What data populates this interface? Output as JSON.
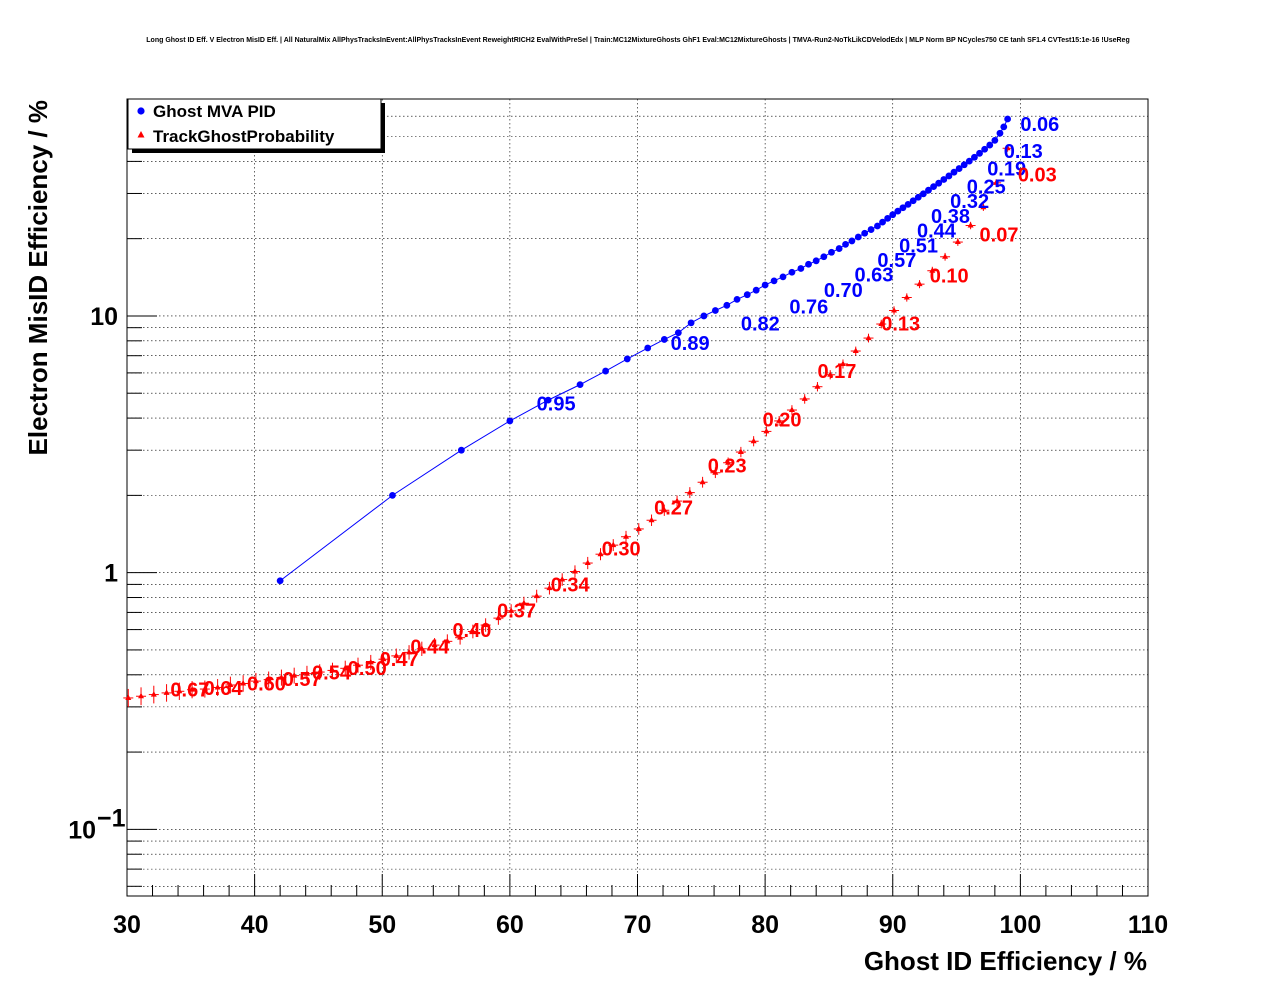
{
  "chart_data": {
    "type": "scatter",
    "title": "Long Ghost ID Eff. V Electron MisID Eff. | All NaturalMix AllPhysTracksInEvent:AllPhysTracksInEvent ReweightRICH2 EvalWithPreSel | Train:MC12MixtureGhosts GhF1 Eval:MC12MixtureGhosts | TMVA-Run2-NoTkLikCDVelodEdx | MLP Norm BP NCycles750 CE tanh SF1.4 CVTest15:1e-16 !UseReg",
    "xlabel": "Ghost ID Efficiency / %",
    "ylabel": "Electron MisID Efficiency / %",
    "xlim": [
      30,
      110
    ],
    "ylim": [
      0.055,
      70
    ],
    "ylog": true,
    "grid": true,
    "legend_position": "top-left",
    "x_ticks": [
      "30",
      "40",
      "50",
      "60",
      "70",
      "80",
      "90",
      "100",
      "110"
    ],
    "y_ticks": [
      {
        "value": 0.1,
        "base": "10",
        "exp": "−1"
      },
      {
        "value": 1,
        "base": "1",
        "exp": ""
      },
      {
        "value": 10,
        "base": "10",
        "exp": ""
      }
    ],
    "series": [
      {
        "name": "Ghost MVA PID",
        "color": "#0000ff",
        "marker": "circle",
        "line": true,
        "x": [
          42,
          50.8,
          56.2,
          60,
          63,
          65.5,
          67.5,
          69.2,
          70.8,
          72.1,
          73.2,
          74.2,
          75.2,
          76.1,
          77,
          77.8,
          78.6,
          79.3,
          80,
          80.7,
          81.4,
          82.1,
          82.8,
          83.4,
          84,
          84.6,
          85.2,
          85.8,
          86.3,
          86.8,
          87.3,
          87.8,
          88.3,
          88.8,
          89.2,
          89.6,
          90,
          90.4,
          90.8,
          91.2,
          91.6,
          92,
          92.4,
          92.8,
          93.2,
          93.6,
          94,
          94.4,
          94.8,
          95.2,
          95.6,
          96,
          96.4,
          96.8,
          97.2,
          97.6,
          98,
          98.4,
          98.7,
          99
        ],
        "y": [
          0.93,
          2.0,
          3.0,
          3.9,
          4.7,
          5.4,
          6.1,
          6.8,
          7.5,
          8.1,
          8.6,
          9.4,
          10.0,
          10.5,
          11.0,
          11.6,
          12.1,
          12.6,
          13.2,
          13.7,
          14.2,
          14.8,
          15.3,
          15.9,
          16.4,
          17.0,
          17.7,
          18.3,
          19.0,
          19.6,
          20.3,
          21.0,
          21.7,
          22.4,
          23.2,
          24.0,
          24.8,
          25.6,
          26.4,
          27.2,
          28.1,
          29.0,
          29.9,
          30.9,
          31.9,
          32.9,
          34.0,
          35.1,
          36.3,
          37.5,
          38.8,
          40.1,
          41.5,
          43.0,
          44.6,
          46.3,
          48.3,
          51.5,
          54.5,
          58.5
        ]
      },
      {
        "name": "TrackGhostProbability",
        "color": "#ff0000",
        "marker": "triangle",
        "line": false,
        "x": [
          30.1,
          31.1,
          32.1,
          33.1,
          34.1,
          35.1,
          36.1,
          37.1,
          38.1,
          39.1,
          40.1,
          41.1,
          42.1,
          43.1,
          44.1,
          45.1,
          46.1,
          47.1,
          48.1,
          49.1,
          50.1,
          51.1,
          52.1,
          53.1,
          54.1,
          55.1,
          56.1,
          57.1,
          58.1,
          59.1,
          60.1,
          61.1,
          62.1,
          63.1,
          64.1,
          65.1,
          66.1,
          67.1,
          68.1,
          69.1,
          70.1,
          71.1,
          72.1,
          73.1,
          74.1,
          75.1,
          76.1,
          77.1,
          78.1,
          79.1,
          80.1,
          81.1,
          82.1,
          83.1,
          84.1,
          85.1,
          86.1,
          87.1,
          88.1,
          89.1,
          90.1,
          91.1,
          92.1,
          93.1,
          94.1,
          95.1,
          96.1,
          97.1,
          98.1,
          99
        ],
        "y": [
          0.325,
          0.33,
          0.335,
          0.34,
          0.345,
          0.35,
          0.352,
          0.357,
          0.365,
          0.37,
          0.378,
          0.383,
          0.39,
          0.397,
          0.404,
          0.41,
          0.416,
          0.424,
          0.436,
          0.447,
          0.46,
          0.474,
          0.489,
          0.505,
          0.522,
          0.54,
          0.558,
          0.59,
          0.625,
          0.665,
          0.71,
          0.76,
          0.81,
          0.87,
          0.94,
          1.01,
          1.09,
          1.18,
          1.28,
          1.38,
          1.48,
          1.6,
          1.75,
          1.9,
          2.05,
          2.25,
          2.45,
          2.68,
          2.95,
          3.25,
          3.55,
          3.9,
          4.3,
          4.75,
          5.3,
          5.9,
          6.5,
          7.3,
          8.2,
          9.3,
          10.5,
          11.8,
          13.3,
          15.0,
          17.0,
          19.4,
          22.5,
          26.5,
          33.0,
          45.0
        ]
      }
    ],
    "annotations": [
      {
        "text": "0.06",
        "x": 100.0,
        "y": 56.0,
        "color": "#0000ff"
      },
      {
        "text": "0.13",
        "x": 98.7,
        "y": 44.0,
        "color": "#0000ff"
      },
      {
        "text": "0.19",
        "x": 97.4,
        "y": 37.5,
        "color": "#0000ff"
      },
      {
        "text": "0.25",
        "x": 95.8,
        "y": 32.0,
        "color": "#0000ff"
      },
      {
        "text": "0.32",
        "x": 94.5,
        "y": 28.0,
        "color": "#0000ff"
      },
      {
        "text": "0.38",
        "x": 93.0,
        "y": 24.5,
        "color": "#0000ff"
      },
      {
        "text": "0.44",
        "x": 91.9,
        "y": 21.5,
        "color": "#0000ff"
      },
      {
        "text": "0.51",
        "x": 90.5,
        "y": 18.8,
        "color": "#0000ff"
      },
      {
        "text": "0.57",
        "x": 88.8,
        "y": 16.5,
        "color": "#0000ff"
      },
      {
        "text": "0.63",
        "x": 87.0,
        "y": 14.5,
        "color": "#0000ff"
      },
      {
        "text": "0.70",
        "x": 84.6,
        "y": 12.6,
        "color": "#0000ff"
      },
      {
        "text": "0.76",
        "x": 81.9,
        "y": 10.9,
        "color": "#0000ff"
      },
      {
        "text": "0.82",
        "x": 78.1,
        "y": 9.35,
        "color": "#0000ff"
      },
      {
        "text": "0.89",
        "x": 72.6,
        "y": 7.85,
        "color": "#0000ff"
      },
      {
        "text": "0.95",
        "x": 62.1,
        "y": 4.55,
        "color": "#0000ff"
      },
      {
        "text": "0.03",
        "x": 99.8,
        "y": 35.5,
        "color": "#ff0000"
      },
      {
        "text": "0.07",
        "x": 96.8,
        "y": 20.8,
        "color": "#ff0000"
      },
      {
        "text": "0.10",
        "x": 92.9,
        "y": 14.4,
        "color": "#ff0000"
      },
      {
        "text": "0.13",
        "x": 89.1,
        "y": 9.35,
        "color": "#ff0000"
      },
      {
        "text": "0.17",
        "x": 84.1,
        "y": 6.1,
        "color": "#ff0000"
      },
      {
        "text": "0.20",
        "x": 79.8,
        "y": 3.95,
        "color": "#ff0000"
      },
      {
        "text": "0.23",
        "x": 75.5,
        "y": 2.62,
        "color": "#ff0000"
      },
      {
        "text": "0.27",
        "x": 71.3,
        "y": 1.79,
        "color": "#ff0000"
      },
      {
        "text": "0.30",
        "x": 67.2,
        "y": 1.24,
        "color": "#ff0000"
      },
      {
        "text": "0.34",
        "x": 63.2,
        "y": 0.9,
        "color": "#ff0000"
      },
      {
        "text": "0.37",
        "x": 59.0,
        "y": 0.712,
        "color": "#ff0000"
      },
      {
        "text": "0.40",
        "x": 55.5,
        "y": 0.598,
        "color": "#ff0000"
      },
      {
        "text": "0.44",
        "x": 52.2,
        "y": 0.515,
        "color": "#ff0000"
      },
      {
        "text": "0.47",
        "x": 49.8,
        "y": 0.46,
        "color": "#ff0000"
      },
      {
        "text": "0.50",
        "x": 47.3,
        "y": 0.425,
        "color": "#ff0000"
      },
      {
        "text": "0.54",
        "x": 44.5,
        "y": 0.408,
        "color": "#ff0000"
      },
      {
        "text": "0.57",
        "x": 42.2,
        "y": 0.385,
        "color": "#ff0000"
      },
      {
        "text": "0.60",
        "x": 39.4,
        "y": 0.37,
        "color": "#ff0000"
      },
      {
        "text": "0.64",
        "x": 36.0,
        "y": 0.356,
        "color": "#ff0000"
      },
      {
        "text": "0.67",
        "x": 33.4,
        "y": 0.35,
        "color": "#ff0000"
      }
    ]
  }
}
